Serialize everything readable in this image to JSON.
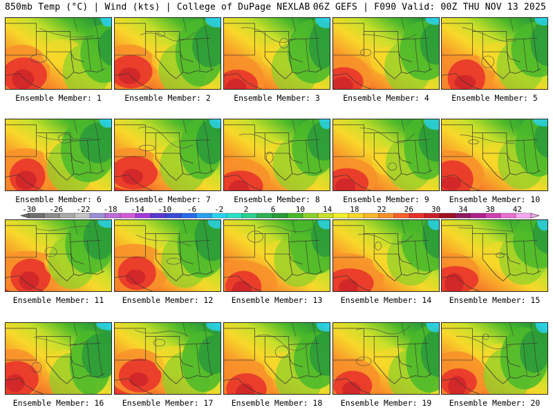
{
  "header": {
    "left_title": "850mb Temp (°C) | Wind (kts) | College of DuPage NEXLAB",
    "right_title": "06Z GEFS | F090 Valid: 00Z THU NOV 13 2025"
  },
  "panels": [
    {
      "label": "Ensemble Member: 1"
    },
    {
      "label": "Ensemble Member: 2"
    },
    {
      "label": "Ensemble Member: 3"
    },
    {
      "label": "Ensemble Member: 4"
    },
    {
      "label": "Ensemble Member: 5"
    },
    {
      "label": "Ensemble Member: 6"
    },
    {
      "label": "Ensemble Member: 7"
    },
    {
      "label": "Ensemble Member: 8"
    },
    {
      "label": "Ensemble Member: 9"
    },
    {
      "label": "Ensemble Member: 10"
    },
    {
      "label": "Ensemble Member: 11"
    },
    {
      "label": "Ensemble Member: 12"
    },
    {
      "label": "Ensemble Member: 13"
    },
    {
      "label": "Ensemble Member: 14"
    },
    {
      "label": "Ensemble Member: 15"
    },
    {
      "label": "Ensemble Member: 16"
    },
    {
      "label": "Ensemble Member: 17"
    },
    {
      "label": "Ensemble Member: 18"
    },
    {
      "label": "Ensemble Member: 19"
    },
    {
      "label": "Ensemble Member: 20"
    }
  ],
  "colorbar": {
    "ticks": [
      "-30",
      "-26",
      "-22",
      "-18",
      "-14",
      "-10",
      "-6",
      "-2",
      "2",
      "6",
      "10",
      "14",
      "18",
      "22",
      "26",
      "30",
      "34",
      "38",
      "42"
    ],
    "colors": [
      "#6e6e6e",
      "#8c8c8c",
      "#a8a8a8",
      "#c4c4c4",
      "#9b8fd6",
      "#bf6ad8",
      "#d35ad8",
      "#a23ad8",
      "#5a3ad0",
      "#3a4ad8",
      "#2a6ae8",
      "#2aa0f0",
      "#2ad4f0",
      "#2ae0c8",
      "#2ad090",
      "#30b050",
      "#2a9a3a",
      "#4ab82a",
      "#8ad02a",
      "#c8e02a",
      "#f0f02a",
      "#f8d82a",
      "#f8b82a",
      "#f8902a",
      "#f8602a",
      "#e8302a",
      "#c8202a",
      "#a01020",
      "#901a60",
      "#b0208a",
      "#d040b0",
      "#e870d0",
      "#f8a8f0"
    ]
  }
}
